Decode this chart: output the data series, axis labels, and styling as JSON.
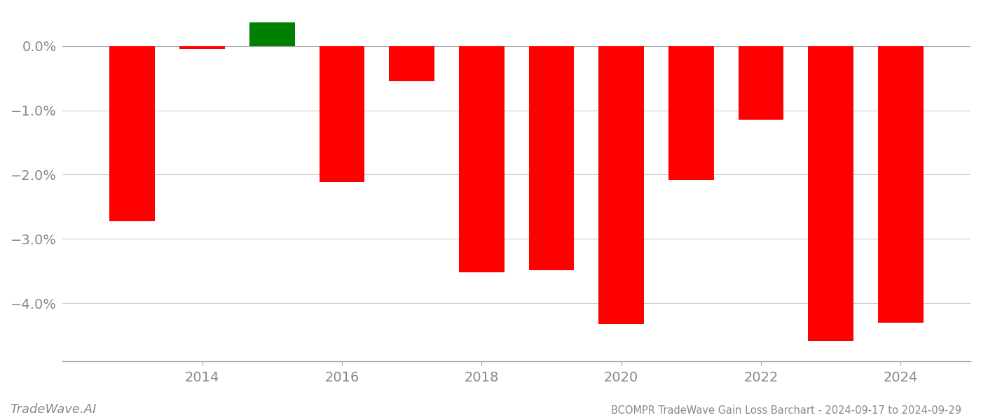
{
  "years": [
    2013,
    2014,
    2015,
    2016,
    2017,
    2018,
    2019,
    2020,
    2021,
    2022,
    2023,
    2024
  ],
  "values": [
    -2.72,
    -0.05,
    0.37,
    -2.12,
    -0.55,
    -3.52,
    -3.48,
    -4.32,
    -2.08,
    -1.15,
    -4.58,
    -4.3
  ],
  "bar_colors": [
    "#ff0000",
    "#ff0000",
    "#008000",
    "#ff0000",
    "#ff0000",
    "#ff0000",
    "#ff0000",
    "#ff0000",
    "#ff0000",
    "#ff0000",
    "#ff0000",
    "#ff0000"
  ],
  "title": "BCOMPR TradeWave Gain Loss Barchart - 2024-09-17 to 2024-09-29",
  "watermark": "TradeWave.AI",
  "ylim_min": -4.9,
  "ylim_max": 0.55,
  "yticks": [
    0.0,
    -1.0,
    -2.0,
    -3.0,
    -4.0
  ],
  "ytick_labels": [
    "0.0%",
    "−1.0%",
    "−2.0%",
    "−3.0%",
    "−4.0%"
  ],
  "xtick_years": [
    2014,
    2016,
    2018,
    2020,
    2022,
    2024
  ],
  "background_color": "#ffffff",
  "grid_color": "#cccccc",
  "bar_width": 0.65,
  "label_color": "#888888",
  "spine_color": "#aaaaaa"
}
